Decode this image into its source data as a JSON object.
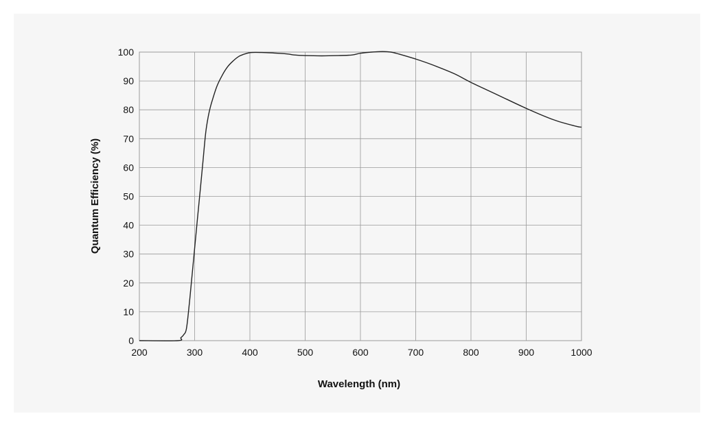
{
  "chart_data": {
    "type": "line",
    "title": "",
    "xlabel": "Wavelength (nm)",
    "ylabel": "Quantum Efficiency (%)",
    "xlim": [
      200,
      1000
    ],
    "ylim": [
      0,
      100
    ],
    "xticks": [
      200,
      300,
      400,
      500,
      600,
      700,
      800,
      900,
      1000
    ],
    "yticks": [
      0,
      10,
      20,
      30,
      40,
      50,
      60,
      70,
      80,
      90,
      100
    ],
    "grid": true,
    "line_color": "#222222",
    "grid_color": "#999999",
    "series": [
      {
        "x": [
          200,
          270,
          275,
          280,
          285,
          290,
          295,
          300,
          305,
          310,
          315,
          320,
          325,
          330,
          340,
          350,
          360,
          370,
          380,
          390,
          400,
          410,
          430,
          450,
          470,
          480,
          500,
          530,
          560,
          585,
          600,
          620,
          640,
          655,
          670,
          700,
          730,
          770,
          800,
          850,
          900,
          950,
          990,
          1000
        ],
        "y": [
          0,
          0,
          1,
          2,
          4,
          12,
          22,
          32,
          42,
          52,
          62,
          72,
          78,
          82,
          88,
          92,
          95,
          97,
          98.5,
          99.3,
          99.8,
          99.9,
          99.8,
          99.6,
          99.3,
          99,
          98.8,
          98.7,
          98.8,
          99,
          99.6,
          100,
          100.2,
          100,
          99.3,
          97.6,
          95.6,
          92.5,
          89.5,
          85,
          80.5,
          76.5,
          74.3,
          74
        ]
      }
    ]
  }
}
